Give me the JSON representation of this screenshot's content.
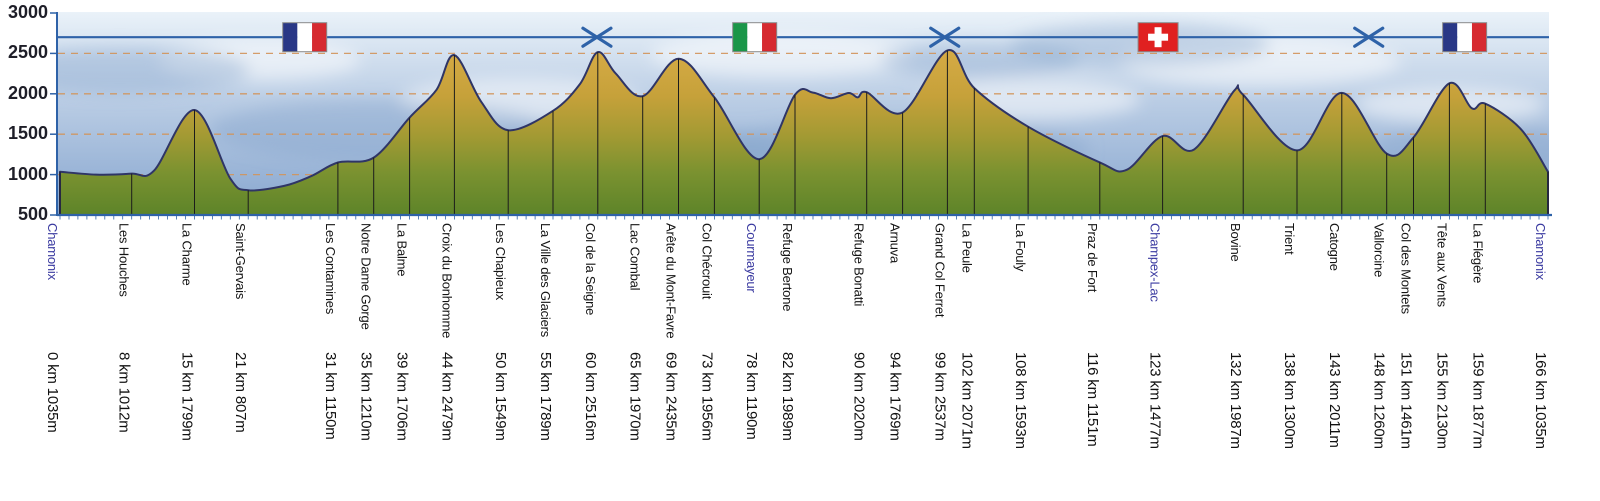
{
  "chart_data": {
    "type": "area",
    "title": "",
    "x_unit": "km",
    "y_unit": "m",
    "x_range_km": [
      0,
      166
    ],
    "y_range_m": [
      500,
      3000
    ],
    "y_ticks": [
      3000,
      2500,
      2000,
      1500,
      1000,
      500
    ],
    "gridlines_m": [
      2500,
      2000,
      1500,
      1000
    ],
    "route_line_alt_m": 2700,
    "points": [
      {
        "name": "Chamonix",
        "km": 0,
        "alt": 1035,
        "label": "0 km 1035m",
        "accent": true
      },
      {
        "name": "Les Houches",
        "km": 8,
        "alt": 1012,
        "label": "8 km 1012m"
      },
      {
        "name": "La Charme",
        "km": 15,
        "alt": 1799,
        "label": "15 km 1799m"
      },
      {
        "name": "Saint-Gervais",
        "km": 21,
        "alt": 807,
        "label": "21 km 807m"
      },
      {
        "name": "Les Contamines",
        "km": 31,
        "alt": 1150,
        "label": "31 km 1150m"
      },
      {
        "name": "Notre Dame Gorge",
        "km": 35,
        "alt": 1210,
        "label": "35 km 1210m"
      },
      {
        "name": "La Balme",
        "km": 39,
        "alt": 1706,
        "label": "39 km 1706m"
      },
      {
        "name": "Croix du Bonhomme",
        "km": 44,
        "alt": 2479,
        "label": "44 km 2479m"
      },
      {
        "name": "Les Chapieux",
        "km": 50,
        "alt": 1549,
        "label": "50 km 1549m"
      },
      {
        "name": "La Ville des Glaciers",
        "km": 55,
        "alt": 1789,
        "label": "55 km 1789m"
      },
      {
        "name": "Col de la Seigne",
        "km": 60,
        "alt": 2516,
        "label": "60 km 2516m"
      },
      {
        "name": "Lac Combal",
        "km": 65,
        "alt": 1970,
        "label": "65 km 1970m"
      },
      {
        "name": "Arête du Mont-Favre",
        "km": 69,
        "alt": 2435,
        "label": "69 km 2435m"
      },
      {
        "name": "Col Chécrouit",
        "km": 73,
        "alt": 1956,
        "label": "73 km 1956m"
      },
      {
        "name": "Courmayeur",
        "km": 78,
        "alt": 1190,
        "label": "78 km 1190m",
        "accent": true
      },
      {
        "name": "Refuge Bertone",
        "km": 82,
        "alt": 1989,
        "label": "82 km 1989m"
      },
      {
        "name": "Refuge Bonatti",
        "km": 90,
        "alt": 2020,
        "label": "90 km 2020m"
      },
      {
        "name": "Arnuva",
        "km": 94,
        "alt": 1769,
        "label": "94 km 1769m"
      },
      {
        "name": "Grand Col Ferret",
        "km": 99,
        "alt": 2537,
        "label": "99 km 2537m"
      },
      {
        "name": "La Peule",
        "km": 102,
        "alt": 2071,
        "label": "102 km 2071m"
      },
      {
        "name": "La Fouly",
        "km": 108,
        "alt": 1593,
        "label": "108 km 1593m"
      },
      {
        "name": "Praz de Fort",
        "km": 116,
        "alt": 1151,
        "label": "116 km 1151m"
      },
      {
        "name": "Champex-Lac",
        "km": 123,
        "alt": 1477,
        "label": "123 km 1477m",
        "accent": true
      },
      {
        "name": "Bovine",
        "km": 132,
        "alt": 1987,
        "label": "132 km 1987m"
      },
      {
        "name": "Trient",
        "km": 138,
        "alt": 1300,
        "label": "138 km 1300m"
      },
      {
        "name": "Catogne",
        "km": 143,
        "alt": 2011,
        "label": "143 km 2011m"
      },
      {
        "name": "Vallorcine",
        "km": 148,
        "alt": 1260,
        "label": "148 km 1260m"
      },
      {
        "name": "Col des Montets",
        "km": 151,
        "alt": 1461,
        "label": "151 km 1461m"
      },
      {
        "name": "Tête aux Vents",
        "km": 155,
        "alt": 2130,
        "label": "155 km 2130m"
      },
      {
        "name": "La Flégère",
        "km": 159,
        "alt": 1877,
        "label": "159 km 1877m"
      },
      {
        "name": "Chamonix",
        "km": 166,
        "alt": 1035,
        "label": "166 km 1035m",
        "accent": true
      }
    ],
    "shape_points": [
      {
        "km": 4,
        "alt": 1000
      },
      {
        "km": 10.5,
        "alt": 1050
      },
      {
        "km": 19,
        "alt": 950
      },
      {
        "km": 25,
        "alt": 860
      },
      {
        "km": 28,
        "alt": 980
      },
      {
        "km": 42,
        "alt": 2050
      },
      {
        "km": 47,
        "alt": 1900
      },
      {
        "km": 58,
        "alt": 2120
      },
      {
        "km": 62,
        "alt": 2250
      },
      {
        "km": 84,
        "alt": 2015
      },
      {
        "km": 86,
        "alt": 1945
      },
      {
        "km": 88,
        "alt": 2010
      },
      {
        "km": 89,
        "alt": 1955
      },
      {
        "km": 119,
        "alt": 1060
      },
      {
        "km": 126.5,
        "alt": 1310
      },
      {
        "km": 131,
        "alt": 2040
      },
      {
        "km": 157.5,
        "alt": 1820
      },
      {
        "km": 163,
        "alt": 1560
      }
    ],
    "markers": [
      {
        "kind": "flag-france",
        "km": 27.3
      },
      {
        "kind": "border-cross",
        "km": 59.9
      },
      {
        "kind": "flag-italy",
        "km": 77.5
      },
      {
        "kind": "border-cross",
        "km": 98.7
      },
      {
        "kind": "flag-switzerland",
        "km": 122.5
      },
      {
        "kind": "border-cross",
        "km": 146
      },
      {
        "kind": "flag-france",
        "km": 156.7
      }
    ],
    "colors": {
      "accent_label": "#3a3aa0",
      "gridline": "#d2945a",
      "axis": "#2e62a8",
      "route_line": "#2e62a8",
      "terrain_outline": "#2f3566",
      "terrain_top": "#d6ab45",
      "terrain_bottom": "#5d8429",
      "sky_top": "#eaf2f9",
      "sky_bottom": "#87a6cf",
      "flag_france_blue": "#293786",
      "flag_red": "#d62a30",
      "flag_italy_green": "#1a9648",
      "flag_swiss_red": "#e02020",
      "tick_line": "#1c1c1c"
    }
  }
}
